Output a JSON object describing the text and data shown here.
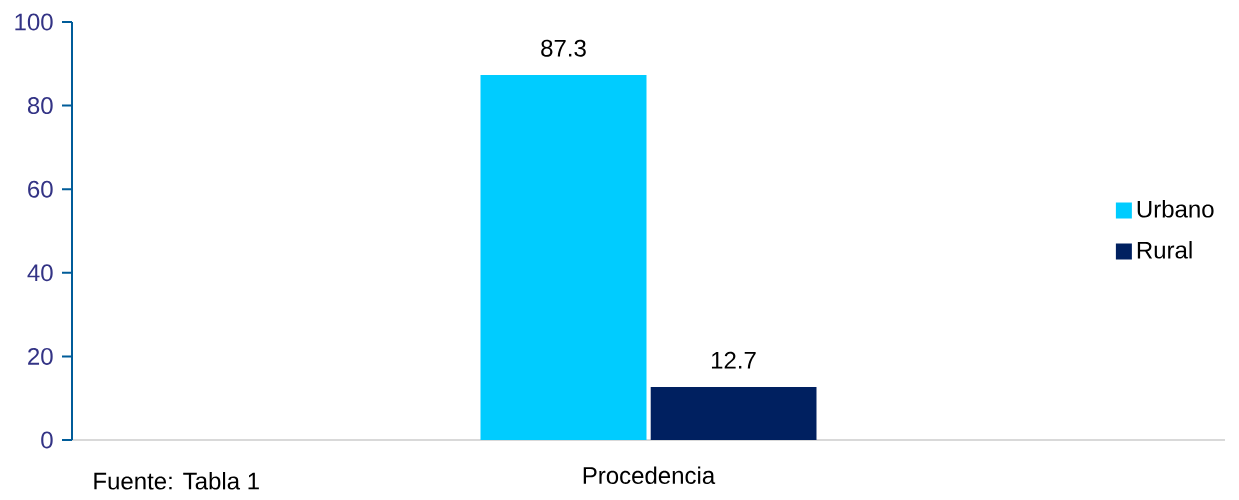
{
  "chart_data": {
    "type": "bar",
    "categories": [
      "Procedencia"
    ],
    "series": [
      {
        "name": "Urbano",
        "color": "#00ccff",
        "values": [
          87.3
        ]
      },
      {
        "name": "Rural",
        "color": "#002060",
        "values": [
          12.7
        ]
      }
    ],
    "ylim": [
      0,
      100
    ],
    "yticks": [
      0,
      20,
      40,
      60,
      80,
      100
    ],
    "data_labels": true,
    "legend": "right",
    "grid": false,
    "annotations": [
      "Fuente: Tabla 1"
    ]
  }
}
